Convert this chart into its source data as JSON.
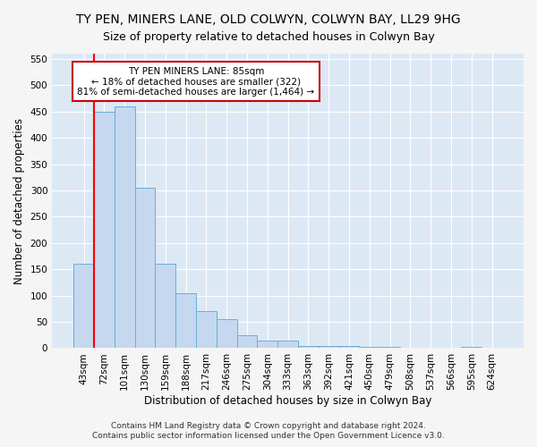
{
  "title": "TY PEN, MINERS LANE, OLD COLWYN, COLWYN BAY, LL29 9HG",
  "subtitle": "Size of property relative to detached houses in Colwyn Bay",
  "xlabel": "Distribution of detached houses by size in Colwyn Bay",
  "ylabel": "Number of detached properties",
  "footnote1": "Contains HM Land Registry data © Crown copyright and database right 2024.",
  "footnote2": "Contains public sector information licensed under the Open Government Licence v3.0.",
  "bar_labels": [
    "43sqm",
    "72sqm",
    "101sqm",
    "130sqm",
    "159sqm",
    "188sqm",
    "217sqm",
    "246sqm",
    "275sqm",
    "304sqm",
    "333sqm",
    "363sqm",
    "392sqm",
    "421sqm",
    "450sqm",
    "479sqm",
    "508sqm",
    "537sqm",
    "566sqm",
    "595sqm",
    "624sqm"
  ],
  "bar_values": [
    160,
    450,
    460,
    305,
    160,
    105,
    70,
    55,
    25,
    15,
    15,
    5,
    5,
    5,
    2,
    2,
    1,
    1,
    1,
    2,
    1
  ],
  "bar_color": "#c5d8ef",
  "bar_edge_color": "#6aaed6",
  "bg_color": "#dde8f5",
  "grid_color": "#ffffff",
  "red_line_index": 1,
  "ylim": [
    0,
    560
  ],
  "yticks": [
    0,
    50,
    100,
    150,
    200,
    250,
    300,
    350,
    400,
    450,
    500,
    550
  ],
  "annotation_text": "TY PEN MINERS LANE: 85sqm\n← 18% of detached houses are smaller (322)\n81% of semi-detached houses are larger (1,464) →",
  "annotation_box_color": "#ffffff",
  "annotation_box_edge": "#cc0000",
  "title_fontsize": 10,
  "subtitle_fontsize": 9,
  "tick_fontsize": 7.5,
  "label_fontsize": 8.5,
  "footnote_fontsize": 6.5
}
